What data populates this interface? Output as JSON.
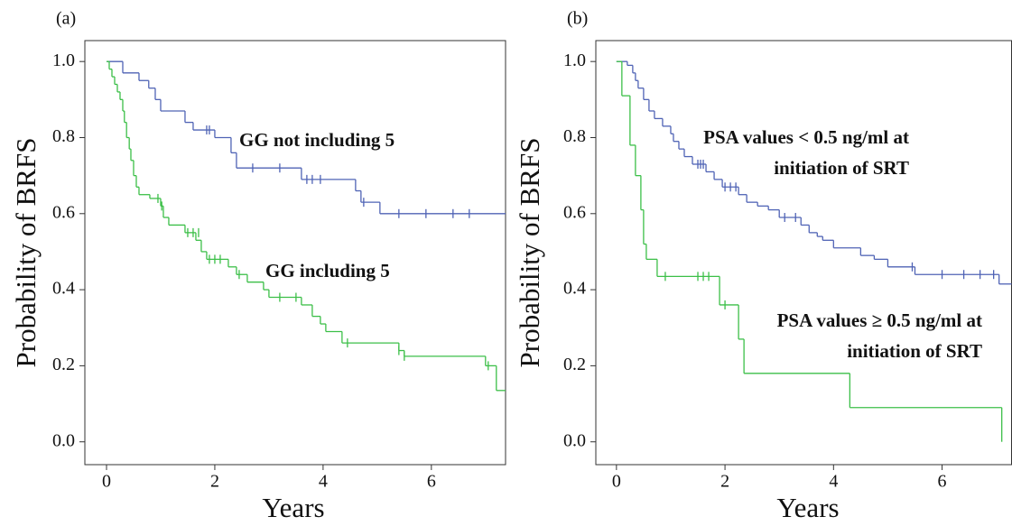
{
  "chart_data": [
    {
      "type": "step",
      "label": "(a)",
      "xlabel": "Years",
      "ylabel": "Probability of BRFS",
      "xlim": [
        -0.4,
        7.37
      ],
      "ylim": [
        -0.06,
        1.055
      ],
      "xticks": [
        0,
        2,
        4,
        6
      ],
      "yticks": [
        {
          "value": 0,
          "label": "0.0"
        },
        {
          "value": 0.2,
          "label": "0.2"
        },
        {
          "value": 0.4,
          "label": "0.4"
        },
        {
          "value": 0.6,
          "label": "0.6"
        },
        {
          "value": 0.8,
          "label": "0.8"
        },
        {
          "value": 1,
          "label": "1.0"
        }
      ],
      "series": [
        {
          "name": "GG not including 5",
          "color": "#4f63b5",
          "x": [
            0,
            0.3,
            0.6,
            0.78,
            0.9,
            1.0,
            1.45,
            1.6,
            2.0,
            2.3,
            2.4,
            3.6,
            4.6,
            4.7,
            5.05,
            7.37
          ],
          "values": [
            1.0,
            0.97,
            0.95,
            0.93,
            0.9,
            0.87,
            0.84,
            0.82,
            0.8,
            0.76,
            0.72,
            0.69,
            0.66,
            0.63,
            0.6,
            0.6
          ],
          "censored_x": [
            1.85,
            1.9,
            2.7,
            3.2,
            3.7,
            3.8,
            3.95,
            4.75,
            5.4,
            5.9,
            6.4,
            6.7
          ],
          "censored_values": [
            0.82,
            0.82,
            0.72,
            0.72,
            0.69,
            0.69,
            0.69,
            0.63,
            0.6,
            0.6,
            0.6,
            0.6
          ]
        },
        {
          "name": "GG including 5",
          "color": "#3cbf48",
          "x": [
            0,
            0.05,
            0.1,
            0.15,
            0.2,
            0.25,
            0.3,
            0.33,
            0.37,
            0.42,
            0.45,
            0.5,
            0.55,
            0.6,
            0.8,
            1.0,
            1.05,
            1.15,
            1.45,
            1.65,
            1.75,
            1.85,
            2.25,
            2.4,
            2.6,
            2.9,
            3.0,
            3.6,
            3.8,
            3.95,
            4.05,
            4.35,
            5.4,
            5.5,
            7.0,
            7.2,
            7.37
          ],
          "values": [
            1.0,
            0.98,
            0.96,
            0.94,
            0.92,
            0.9,
            0.87,
            0.84,
            0.8,
            0.77,
            0.74,
            0.7,
            0.67,
            0.65,
            0.64,
            0.62,
            0.59,
            0.57,
            0.55,
            0.53,
            0.5,
            0.48,
            0.46,
            0.44,
            0.42,
            0.4,
            0.38,
            0.36,
            0.33,
            0.31,
            0.29,
            0.26,
            0.24,
            0.225,
            0.2,
            0.135,
            0.135
          ],
          "censored_x": [
            0.95,
            1.02,
            1.5,
            1.6,
            1.7,
            1.9,
            2.0,
            2.1,
            2.45,
            3.2,
            3.5,
            4.45,
            5.4,
            5.5,
            7.05
          ],
          "censored_values": [
            0.64,
            0.62,
            0.55,
            0.55,
            0.55,
            0.48,
            0.48,
            0.48,
            0.44,
            0.38,
            0.38,
            0.26,
            0.24,
            0.225,
            0.2
          ]
        }
      ]
    },
    {
      "type": "step",
      "label": "(b)",
      "xlabel": "Years",
      "ylabel": "Probability of BRFS",
      "xlim": [
        -0.38,
        7.28
      ],
      "ylim": [
        -0.06,
        1.055
      ],
      "xticks": [
        0,
        2,
        4,
        6
      ],
      "yticks": [
        {
          "value": 0,
          "label": "0.0"
        },
        {
          "value": 0.2,
          "label": "0.2"
        },
        {
          "value": 0.4,
          "label": "0.4"
        },
        {
          "value": 0.6,
          "label": "0.6"
        },
        {
          "value": 0.8,
          "label": "0.8"
        },
        {
          "value": 1,
          "label": "1.0"
        }
      ],
      "series": [
        {
          "name": "PSA values < 0.5 ng/ml at initiation of SRT",
          "color": "#4f63b5",
          "x": [
            0,
            0.2,
            0.3,
            0.35,
            0.4,
            0.5,
            0.6,
            0.7,
            0.85,
            1.0,
            1.05,
            1.15,
            1.25,
            1.4,
            1.65,
            1.8,
            1.95,
            2.25,
            2.4,
            2.6,
            2.8,
            3.0,
            3.4,
            3.55,
            3.7,
            3.8,
            4.0,
            4.5,
            4.75,
            5.0,
            5.5,
            7.05,
            7.28
          ],
          "values": [
            1.0,
            0.99,
            0.97,
            0.95,
            0.93,
            0.9,
            0.87,
            0.85,
            0.83,
            0.81,
            0.79,
            0.77,
            0.75,
            0.73,
            0.71,
            0.69,
            0.67,
            0.65,
            0.63,
            0.62,
            0.61,
            0.59,
            0.57,
            0.55,
            0.54,
            0.53,
            0.51,
            0.49,
            0.48,
            0.46,
            0.44,
            0.415,
            0.415
          ],
          "censored_x": [
            1.5,
            1.55,
            1.6,
            2.0,
            2.1,
            2.2,
            3.1,
            3.3,
            5.45,
            6.0,
            6.4,
            6.7,
            6.95
          ],
          "censored_values": [
            0.73,
            0.73,
            0.73,
            0.67,
            0.67,
            0.67,
            0.59,
            0.59,
            0.46,
            0.44,
            0.44,
            0.44,
            0.44
          ]
        },
        {
          "name": "PSA values ≥ 0.5 ng/ml at initiation of SRT",
          "color": "#3cbf48",
          "x": [
            0,
            0.1,
            0.25,
            0.35,
            0.45,
            0.5,
            0.55,
            0.75,
            1.9,
            2.25,
            2.35,
            4.3,
            7.1
          ],
          "values": [
            1.0,
            0.91,
            0.78,
            0.7,
            0.61,
            0.52,
            0.48,
            0.435,
            0.36,
            0.27,
            0.18,
            0.09,
            0.0
          ],
          "censored_x": [
            0.9,
            1.5,
            1.6,
            1.7,
            2.0
          ],
          "censored_values": [
            0.435,
            0.435,
            0.435,
            0.435,
            0.36
          ]
        }
      ]
    }
  ]
}
